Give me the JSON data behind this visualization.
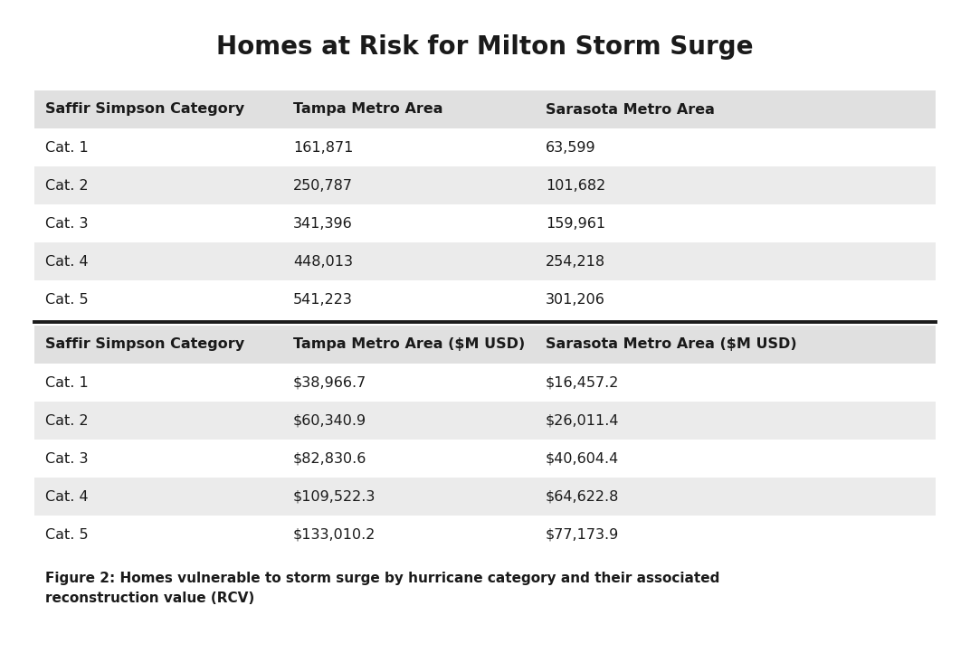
{
  "title": "Homes at Risk for Milton Storm Surge",
  "title_fontsize": 20,
  "background_color": "#ffffff",
  "row_alt_color": "#ebebeb",
  "header_bg_color": "#e0e0e0",
  "divider_color": "#1a1a1a",
  "table1_headers": [
    "Saffir Simpson Category",
    "Tampa Metro Area",
    "Sarasota Metro Area"
  ],
  "table1_rows": [
    [
      "Cat. 1",
      "161,871",
      "63,599"
    ],
    [
      "Cat. 2",
      "250,787",
      "101,682"
    ],
    [
      "Cat. 3",
      "341,396",
      "159,961"
    ],
    [
      "Cat. 4",
      "448,013",
      "254,218"
    ],
    [
      "Cat. 5",
      "541,223",
      "301,206"
    ]
  ],
  "table2_headers": [
    "Saffir Simpson Category",
    "Tampa Metro Area ($M USD)",
    "Sarasota Metro Area ($M USD)"
  ],
  "table2_rows": [
    [
      "Cat. 1",
      "$38,966.7",
      "$16,457.2"
    ],
    [
      "Cat. 2",
      "$60,340.9",
      "$26,011.4"
    ],
    [
      "Cat. 3",
      "$82,830.6",
      "$40,604.4"
    ],
    [
      "Cat. 4",
      "$109,522.3",
      "$64,622.8"
    ],
    [
      "Cat. 5",
      "$133,010.2",
      "$77,173.9"
    ]
  ],
  "caption_line1": "Figure 2: Homes vulnerable to storm surge by hurricane category and their associated",
  "caption_line2": "reconstruction value (RCV)",
  "caption_fontsize": 11,
  "header_fontsize": 11.5,
  "cell_fontsize": 11.5,
  "fig_width": 10.72,
  "fig_height": 7.22,
  "dpi": 100
}
